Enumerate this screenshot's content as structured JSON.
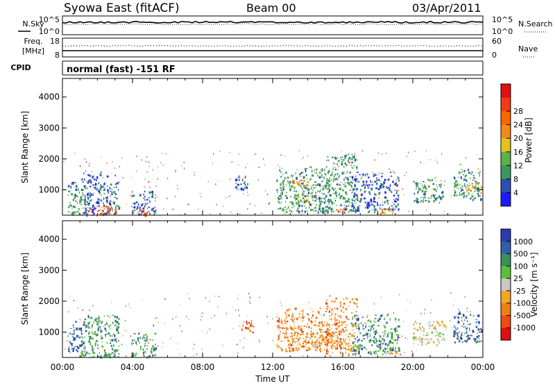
{
  "header": {
    "station": "Syowa East (fitACF)",
    "beam": "Beam 00",
    "date": "03/Apr/2011"
  },
  "strips": {
    "nsky_label": "N.Sky",
    "nsearch_label": "N.Search",
    "freq_label": "Freq.",
    "freq_unit": "[MHz]",
    "nave_label": "Nave",
    "cpid_label": "CPID",
    "cpid_value": "normal (fast) -151 RF",
    "noise_ticks_left": [
      "10^5",
      "10^0"
    ],
    "noise_ticks_right": [
      "10^5",
      "10^0"
    ],
    "freq_ticks": [
      "18",
      "8"
    ],
    "nave_ticks": [
      "60",
      "0"
    ]
  },
  "chart_data": [
    {
      "type": "heatmap",
      "name": "power",
      "ylabel": "Slant Range [km]",
      "xlabel": "",
      "y_ticks": [
        "1000",
        "2000",
        "3000",
        "4000"
      ],
      "ylim": [
        180,
        4600
      ],
      "colorbar_label": "Power [dB]",
      "colorbar_ticks": [
        "4",
        "8",
        "12",
        "16",
        "20",
        "24",
        "28"
      ],
      "colorbar_colors": [
        "#1b1bff",
        "#2c4eb5",
        "#3a9a5e",
        "#5db04a",
        "#e3c21c",
        "#f28a1a",
        "#ff6600",
        "#f03b14",
        "#e01010"
      ],
      "echo_clusters": [
        {
          "t": [
            0.3,
            1.2
          ],
          "r": [
            200,
            1400
          ],
          "level": 2
        },
        {
          "t": [
            1.2,
            3.2
          ],
          "r": [
            200,
            1600
          ],
          "level": 1
        },
        {
          "t": [
            1.4,
            3.1
          ],
          "r": [
            200,
            500
          ],
          "level": 6
        },
        {
          "t": [
            3.9,
            5.3
          ],
          "r": [
            200,
            1000
          ],
          "level": 1
        },
        {
          "t": [
            4.2,
            5.0
          ],
          "r": [
            200,
            450
          ],
          "level": 6
        },
        {
          "t": [
            9.8,
            10.6
          ],
          "r": [
            1000,
            1500
          ],
          "level": 1
        },
        {
          "t": [
            12.2,
            15.2
          ],
          "r": [
            300,
            1800
          ],
          "level": 2
        },
        {
          "t": [
            13.0,
            14.0
          ],
          "r": [
            1100,
            1400
          ],
          "level": 5
        },
        {
          "t": [
            13.2,
            14.2
          ],
          "r": [
            600,
            900
          ],
          "level": 4
        },
        {
          "t": [
            15.0,
            16.8
          ],
          "r": [
            300,
            2200
          ],
          "level": 2
        },
        {
          "t": [
            15.6,
            16.2
          ],
          "r": [
            250,
            450
          ],
          "level": 6
        },
        {
          "t": [
            16.5,
            19.2
          ],
          "r": [
            300,
            1600
          ],
          "level": 1
        },
        {
          "t": [
            17.8,
            19.0
          ],
          "r": [
            250,
            450
          ],
          "level": 5
        },
        {
          "t": [
            20.0,
            21.8
          ],
          "r": [
            600,
            1400
          ],
          "level": 2
        },
        {
          "t": [
            22.3,
            23.9
          ],
          "r": [
            700,
            1700
          ],
          "level": 2
        },
        {
          "t": [
            23.0,
            23.9
          ],
          "r": [
            900,
            1300
          ],
          "level": 5
        }
      ]
    },
    {
      "type": "heatmap",
      "name": "velocity",
      "ylabel": "Slant Range [km]",
      "xlabel": "Time UT",
      "x_ticks": [
        "00:00",
        "04:00",
        "08:00",
        "12:00",
        "16:00",
        "20:00",
        "00:00"
      ],
      "xlim": [
        0,
        24
      ],
      "y_ticks": [
        "1000",
        "2000",
        "3000",
        "4000"
      ],
      "ylim": [
        180,
        4600
      ],
      "colorbar_label": "Velocity [m s⁻¹]",
      "colorbar_ticks": [
        "1000",
        "500",
        "100",
        "25",
        "-25",
        "-100",
        "-500",
        "-1000"
      ],
      "colorbar_colors": [
        "#2a3cb0",
        "#2f5fa8",
        "#3a8f5a",
        "#5cbf3a",
        "#c8c8c8",
        "#f5a623",
        "#ef7f14",
        "#f04a14",
        "#e01010"
      ],
      "echo_clusters": [
        {
          "t": [
            0.3,
            1.2
          ],
          "r": [
            400,
            1400
          ],
          "level": 1
        },
        {
          "t": [
            1.2,
            3.2
          ],
          "r": [
            200,
            1600
          ],
          "level": 2
        },
        {
          "t": [
            1.0,
            3.0
          ],
          "r": [
            200,
            400
          ],
          "level": 3
        },
        {
          "t": [
            3.9,
            5.3
          ],
          "r": [
            200,
            1000
          ],
          "level": 2
        },
        {
          "t": [
            10.2,
            10.9
          ],
          "r": [
            1000,
            1400
          ],
          "level": 7
        },
        {
          "t": [
            12.2,
            15.2
          ],
          "r": [
            400,
            1800
          ],
          "level": 6
        },
        {
          "t": [
            13.0,
            14.8
          ],
          "r": [
            600,
            900
          ],
          "level": 5
        },
        {
          "t": [
            15.0,
            16.8
          ],
          "r": [
            300,
            2200
          ],
          "level": 6
        },
        {
          "t": [
            16.5,
            19.2
          ],
          "r": [
            300,
            1600
          ],
          "level": 2
        },
        {
          "t": [
            18.5,
            19.4
          ],
          "r": [
            300,
            500
          ],
          "level": 5
        },
        {
          "t": [
            20.0,
            21.8
          ],
          "r": [
            600,
            1400
          ],
          "level": 4
        },
        {
          "t": [
            22.3,
            23.9
          ],
          "r": [
            700,
            1700
          ],
          "level": 1
        }
      ]
    }
  ]
}
